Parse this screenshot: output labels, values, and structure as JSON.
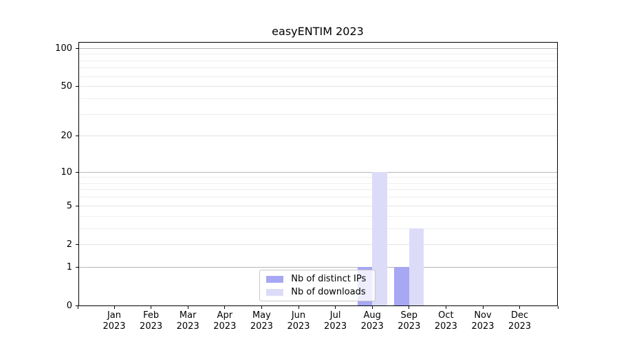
{
  "chart_data": {
    "type": "bar",
    "title": "easyENTIM 2023",
    "xlabel": "",
    "ylabel": "",
    "categories": [
      "Jan",
      "Feb",
      "Mar",
      "Apr",
      "May",
      "Jun",
      "Jul",
      "Aug",
      "Sep",
      "Oct",
      "Nov",
      "Dec"
    ],
    "category_year": "2023",
    "series": [
      {
        "name": "Nb of distinct IPs",
        "color": "#a7a7f4",
        "values": [
          0,
          0,
          0,
          0,
          0,
          0,
          0,
          1,
          1,
          0,
          0,
          0
        ]
      },
      {
        "name": "Nb of downloads",
        "color": "#dcdcf9",
        "values": [
          0,
          0,
          0,
          0,
          0,
          0,
          0,
          10,
          3,
          0,
          0,
          0
        ]
      }
    ],
    "yscale": "log10(1+v)",
    "ylim": [
      0,
      113
    ],
    "y_tick_values": [
      0,
      1,
      2,
      5,
      10,
      20,
      50,
      100
    ],
    "y_decade_gridline_values": [
      1,
      10,
      100
    ],
    "y_minor_gridline_values": [
      3,
      4,
      6,
      7,
      8,
      9,
      30,
      40,
      60,
      70,
      80,
      90
    ],
    "grid": "horizontal",
    "legend_position": "lower center",
    "colors": {
      "figure_background": "#ffffff",
      "axis": "#000000",
      "text": "#000000",
      "decade_gridline": "#b6b6b6",
      "major_gridline": "#e3e3e3",
      "minor_gridline": "#eeeeee",
      "legend_border": "#c8c8c8",
      "legend_background": "rgba(255,255,255,0.8)"
    }
  }
}
